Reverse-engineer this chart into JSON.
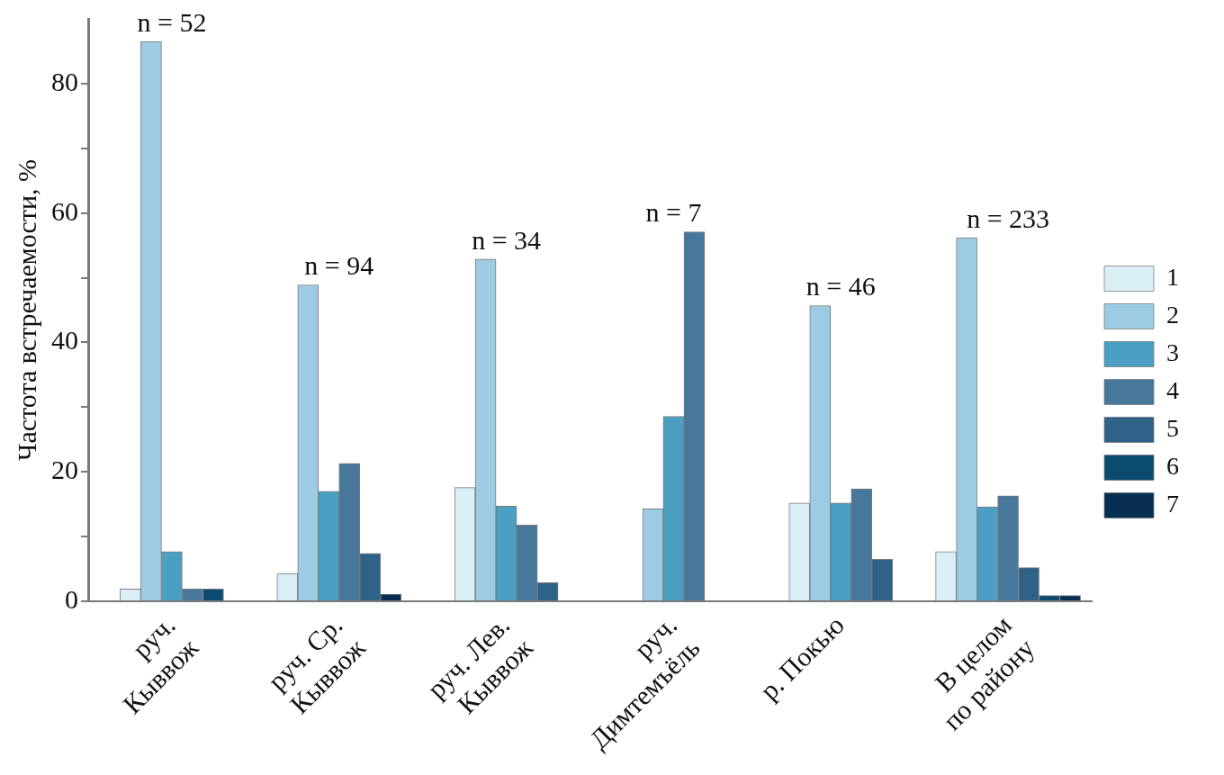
{
  "chart_data": {
    "type": "bar",
    "ylabel": "Частота встречаемости, %",
    "categories": [
      "руч.\nКыввож",
      "руч. Ср.\nКыввож",
      "руч. Лев.\nКыввож",
      "руч.\nДимтемъёль",
      "р. Покью",
      "В целом\nпо району"
    ],
    "series": [
      {
        "name": "1",
        "color": "#daeef5",
        "values": [
          1.9,
          4.3,
          17.6,
          null,
          15.2,
          7.7
        ]
      },
      {
        "name": "2",
        "color": "#9ccbe3",
        "values": [
          86.5,
          48.9,
          52.9,
          14.3,
          45.7,
          56.2
        ]
      },
      {
        "name": "3",
        "color": "#4a9fc2",
        "values": [
          7.7,
          17.0,
          14.7,
          28.6,
          15.2,
          14.6
        ]
      },
      {
        "name": "4",
        "color": "#47789c",
        "values": [
          1.9,
          21.3,
          11.8,
          57.1,
          17.4,
          16.3
        ]
      },
      {
        "name": "5",
        "color": "#2e6287",
        "values": [
          null,
          7.4,
          2.9,
          null,
          6.5,
          5.2
        ]
      },
      {
        "name": "6",
        "color": "#0b4b70",
        "values": [
          1.9,
          null,
          null,
          null,
          null,
          0.9
        ]
      },
      {
        "name": "7",
        "color": "#062f52",
        "values": [
          null,
          1.1,
          null,
          null,
          null,
          0.9
        ]
      }
    ],
    "ylim": [
      0,
      90
    ],
    "yticks": [
      0,
      {
        "value": 10,
        "label": null
      },
      20,
      {
        "value": 30,
        "label": null
      },
      40,
      {
        "value": 50,
        "label": null
      },
      60,
      {
        "value": 70,
        "label": null
      },
      80
    ],
    "annotations": [
      "n = 52",
      "n = 94",
      "n = 34",
      "n = 7",
      "n = 46",
      "n = 233"
    ],
    "legend": "right",
    "grid": false
  }
}
